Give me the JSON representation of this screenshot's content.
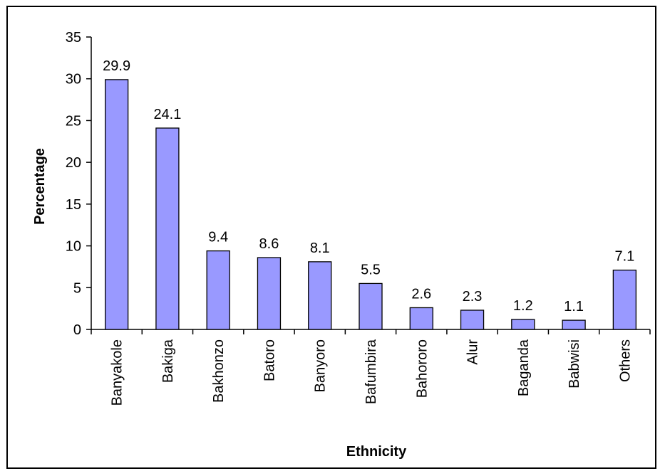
{
  "chart_data": {
    "type": "bar",
    "categories": [
      "Banyakole",
      "Bakiga",
      "Bakhonzo",
      "Batoro",
      "Banyoro",
      "Bafumbira",
      "Bahororo",
      "Alur",
      "Baganda",
      "Babwisi",
      "Others"
    ],
    "values": [
      29.9,
      24.1,
      9.4,
      8.6,
      8.1,
      5.5,
      2.6,
      2.3,
      1.2,
      1.1,
      7.1
    ],
    "data_labels": [
      "29.9",
      "24.1",
      "9.4",
      "8.6",
      "8.1",
      "5.5",
      "2.6",
      "2.3",
      "1.2",
      "1.1",
      "7.1"
    ],
    "xlabel": "Ethnicity",
    "ylabel": "Percentage",
    "ylim": [
      0,
      35
    ],
    "yticks": [
      0,
      5,
      10,
      15,
      20,
      25,
      30,
      35
    ],
    "grid": false,
    "legend": "none",
    "bar_color": "#9999ff",
    "bar_edge_color": "#000000"
  }
}
